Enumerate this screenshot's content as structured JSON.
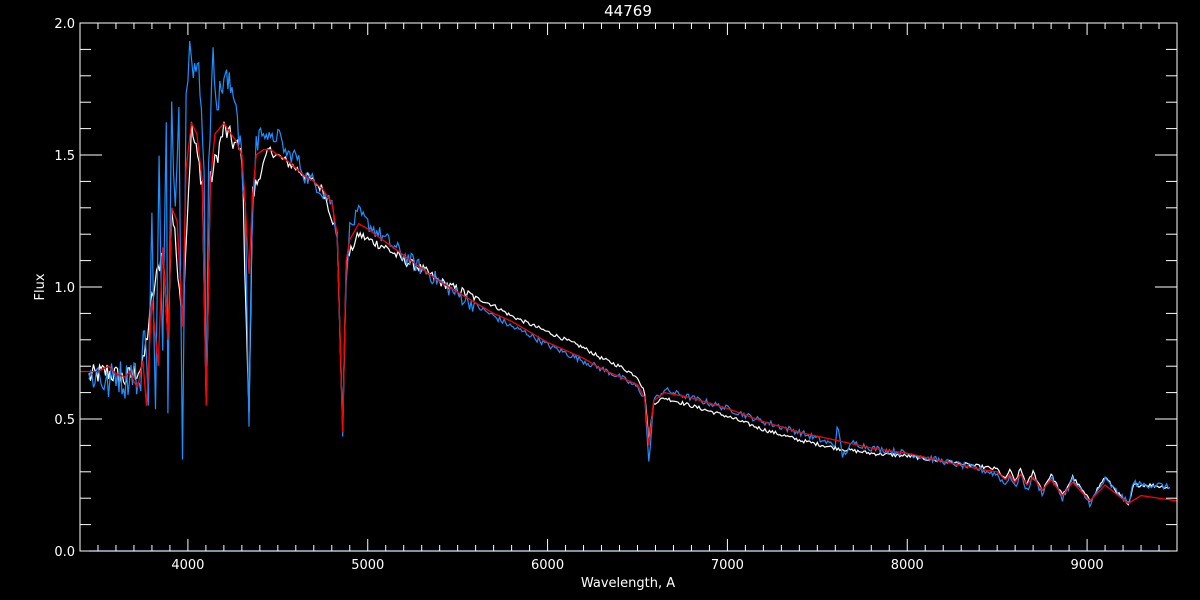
{
  "chart_data": {
    "type": "line",
    "title": "44769",
    "xlabel": "Wavelength, A",
    "ylabel": "Flux",
    "xlim": [
      3400,
      9500
    ],
    "ylim": [
      0.0,
      2.0
    ],
    "xticks": [
      "4000",
      "5000",
      "6000",
      "7000",
      "8000",
      "9000"
    ],
    "yticks": [
      "0.0",
      "0.5",
      "1.0",
      "1.5",
      "2.0"
    ],
    "grid": false,
    "background": "#000000",
    "series": [
      {
        "color": "#ffffff",
        "points": [
          [
            3450,
            0.66
          ],
          [
            3550,
            0.68
          ],
          [
            3650,
            0.65
          ],
          [
            3750,
            0.7
          ],
          [
            3800,
            0.95
          ],
          [
            3860,
            1.15
          ],
          [
            3889,
            0.8
          ],
          [
            3910,
            1.3
          ],
          [
            3970,
            0.9
          ],
          [
            4020,
            1.6
          ],
          [
            4080,
            1.4
          ],
          [
            4102,
            0.55
          ],
          [
            4125,
            1.4
          ],
          [
            4200,
            1.6
          ],
          [
            4300,
            1.5
          ],
          [
            4340,
            0.5
          ],
          [
            4360,
            1.35
          ],
          [
            4450,
            1.52
          ],
          [
            4600,
            1.45
          ],
          [
            4750,
            1.37
          ],
          [
            4830,
            1.2
          ],
          [
            4861,
            0.45
          ],
          [
            4880,
            1.1
          ],
          [
            4950,
            1.2
          ],
          [
            5000,
            1.18
          ],
          [
            5100,
            1.15
          ],
          [
            5200,
            1.1
          ],
          [
            5300,
            1.07
          ],
          [
            5400,
            1.02
          ],
          [
            5500,
            0.99
          ],
          [
            5600,
            0.96
          ],
          [
            5700,
            0.93
          ],
          [
            5800,
            0.89
          ],
          [
            5900,
            0.86
          ],
          [
            6000,
            0.83
          ],
          [
            6100,
            0.8
          ],
          [
            6200,
            0.77
          ],
          [
            6300,
            0.73
          ],
          [
            6400,
            0.7
          ],
          [
            6500,
            0.66
          ],
          [
            6540,
            0.6
          ],
          [
            6563,
            0.42
          ],
          [
            6590,
            0.56
          ],
          [
            6650,
            0.58
          ],
          [
            6800,
            0.55
          ],
          [
            7000,
            0.51
          ],
          [
            7200,
            0.46
          ],
          [
            7400,
            0.42
          ],
          [
            7600,
            0.39
          ],
          [
            7800,
            0.37
          ],
          [
            8000,
            0.36
          ],
          [
            8200,
            0.34
          ],
          [
            8400,
            0.32
          ],
          [
            8500,
            0.31
          ],
          [
            8545,
            0.27
          ],
          [
            8570,
            0.31
          ],
          [
            8598,
            0.26
          ],
          [
            8630,
            0.31
          ],
          [
            8665,
            0.25
          ],
          [
            8700,
            0.3
          ],
          [
            8750,
            0.23
          ],
          [
            8800,
            0.29
          ],
          [
            8863,
            0.21
          ],
          [
            8920,
            0.28
          ],
          [
            9015,
            0.19
          ],
          [
            9100,
            0.28
          ],
          [
            9229,
            0.17
          ],
          [
            9260,
            0.25
          ],
          [
            9350,
            0.25
          ],
          [
            9460,
            0.24
          ]
        ]
      },
      {
        "color": "#1e90ff",
        "points": [
          [
            3450,
            0.65
          ],
          [
            3500,
            0.68
          ],
          [
            3550,
            0.62
          ],
          [
            3600,
            0.68
          ],
          [
            3650,
            0.64
          ],
          [
            3700,
            0.7
          ],
          [
            3730,
            0.58
          ],
          [
            3760,
            0.9
          ],
          [
            3780,
            0.55
          ],
          [
            3800,
            1.25
          ],
          [
            3820,
            0.6
          ],
          [
            3840,
            1.45
          ],
          [
            3860,
            0.75
          ],
          [
            3880,
            1.6
          ],
          [
            3889,
            0.5
          ],
          [
            3910,
            1.7
          ],
          [
            3930,
            1.3
          ],
          [
            3950,
            1.75
          ],
          [
            3970,
            0.35
          ],
          [
            3990,
            1.7
          ],
          [
            4010,
            2.0
          ],
          [
            4030,
            1.85
          ],
          [
            4060,
            1.8
          ],
          [
            4090,
            1.5
          ],
          [
            4102,
            0.53
          ],
          [
            4115,
            1.5
          ],
          [
            4140,
            1.85
          ],
          [
            4170,
            1.7
          ],
          [
            4200,
            1.8
          ],
          [
            4230,
            1.75
          ],
          [
            4260,
            1.75
          ],
          [
            4290,
            1.55
          ],
          [
            4320,
            1.25
          ],
          [
            4340,
            0.5
          ],
          [
            4355,
            1.2
          ],
          [
            4380,
            1.55
          ],
          [
            4420,
            1.6
          ],
          [
            4460,
            1.55
          ],
          [
            4500,
            1.58
          ],
          [
            4550,
            1.5
          ],
          [
            4600,
            1.5
          ],
          [
            4650,
            1.42
          ],
          [
            4700,
            1.4
          ],
          [
            4750,
            1.36
          ],
          [
            4800,
            1.32
          ],
          [
            4830,
            1.2
          ],
          [
            4861,
            0.45
          ],
          [
            4880,
            1.05
          ],
          [
            4900,
            1.22
          ],
          [
            4950,
            1.28
          ],
          [
            5000,
            1.24
          ],
          [
            5100,
            1.18
          ],
          [
            5200,
            1.12
          ],
          [
            5300,
            1.07
          ],
          [
            5400,
            1.02
          ],
          [
            5500,
            0.97
          ],
          [
            5600,
            0.93
          ],
          [
            5700,
            0.89
          ],
          [
            5800,
            0.85
          ],
          [
            5900,
            0.82
          ],
          [
            6000,
            0.78
          ],
          [
            6100,
            0.75
          ],
          [
            6200,
            0.72
          ],
          [
            6300,
            0.69
          ],
          [
            6400,
            0.66
          ],
          [
            6500,
            0.62
          ],
          [
            6540,
            0.58
          ],
          [
            6563,
            0.33
          ],
          [
            6590,
            0.57
          ],
          [
            6650,
            0.61
          ],
          [
            6800,
            0.58
          ],
          [
            7000,
            0.54
          ],
          [
            7200,
            0.49
          ],
          [
            7400,
            0.45
          ],
          [
            7600,
            0.4
          ],
          [
            7610,
            0.48
          ],
          [
            7640,
            0.36
          ],
          [
            7700,
            0.41
          ],
          [
            7800,
            0.39
          ],
          [
            8000,
            0.37
          ],
          [
            8200,
            0.34
          ],
          [
            8400,
            0.31
          ],
          [
            8500,
            0.29
          ],
          [
            8545,
            0.25
          ],
          [
            8570,
            0.29
          ],
          [
            8598,
            0.24
          ],
          [
            8630,
            0.29
          ],
          [
            8665,
            0.23
          ],
          [
            8700,
            0.28
          ],
          [
            8750,
            0.22
          ],
          [
            8800,
            0.28
          ],
          [
            8863,
            0.2
          ],
          [
            8920,
            0.27
          ],
          [
            9015,
            0.18
          ],
          [
            9100,
            0.27
          ],
          [
            9229,
            0.18
          ],
          [
            9260,
            0.26
          ],
          [
            9300,
            0.25
          ],
          [
            9400,
            0.25
          ],
          [
            9460,
            0.24
          ]
        ]
      },
      {
        "color": "#1e90ff",
        "points": [
          [
            3450,
            0.0
          ],
          [
            9460,
            0.0
          ]
        ]
      },
      {
        "color": "#ff0000",
        "points": [
          [
            3400,
            0.68
          ],
          [
            3500,
            0.68
          ],
          [
            3560,
            0.7
          ],
          [
            3600,
            0.67
          ],
          [
            3650,
            0.66
          ],
          [
            3680,
            0.68
          ],
          [
            3700,
            0.64
          ],
          [
            3720,
            0.62
          ],
          [
            3750,
            0.72
          ],
          [
            3770,
            0.55
          ],
          [
            3800,
            0.95
          ],
          [
            3835,
            0.7
          ],
          [
            3860,
            1.15
          ],
          [
            3889,
            0.8
          ],
          [
            3910,
            1.3
          ],
          [
            3940,
            1.25
          ],
          [
            3970,
            0.85
          ],
          [
            3990,
            1.45
          ],
          [
            4020,
            1.62
          ],
          [
            4050,
            1.58
          ],
          [
            4080,
            1.4
          ],
          [
            4102,
            0.55
          ],
          [
            4125,
            1.4
          ],
          [
            4150,
            1.58
          ],
          [
            4200,
            1.62
          ],
          [
            4240,
            1.58
          ],
          [
            4270,
            1.55
          ],
          [
            4300,
            1.5
          ],
          [
            4320,
            1.3
          ],
          [
            4340,
            1.05
          ],
          [
            4360,
            1.35
          ],
          [
            4380,
            1.5
          ],
          [
            4420,
            1.52
          ],
          [
            4460,
            1.52
          ],
          [
            4500,
            1.5
          ],
          [
            4550,
            1.48
          ],
          [
            4600,
            1.45
          ],
          [
            4650,
            1.42
          ],
          [
            4700,
            1.4
          ],
          [
            4750,
            1.37
          ],
          [
            4800,
            1.32
          ],
          [
            4830,
            1.2
          ],
          [
            4861,
            0.45
          ],
          [
            4880,
            1.1
          ],
          [
            4900,
            1.18
          ],
          [
            4950,
            1.24
          ],
          [
            5000,
            1.22
          ],
          [
            5100,
            1.17
          ],
          [
            5200,
            1.12
          ],
          [
            5300,
            1.07
          ],
          [
            5400,
            1.02
          ],
          [
            5500,
            0.98
          ],
          [
            5600,
            0.94
          ],
          [
            5700,
            0.9
          ],
          [
            5800,
            0.87
          ],
          [
            5900,
            0.83
          ],
          [
            6000,
            0.79
          ],
          [
            6100,
            0.76
          ],
          [
            6200,
            0.73
          ],
          [
            6300,
            0.69
          ],
          [
            6400,
            0.66
          ],
          [
            6500,
            0.63
          ],
          [
            6540,
            0.58
          ],
          [
            6563,
            0.4
          ],
          [
            6590,
            0.57
          ],
          [
            6650,
            0.6
          ],
          [
            6800,
            0.58
          ],
          [
            7000,
            0.54
          ],
          [
            7200,
            0.49
          ],
          [
            7400,
            0.45
          ],
          [
            7600,
            0.42
          ],
          [
            7800,
            0.39
          ],
          [
            8000,
            0.37
          ],
          [
            8200,
            0.34
          ],
          [
            8400,
            0.31
          ],
          [
            8500,
            0.3
          ],
          [
            8545,
            0.27
          ],
          [
            8570,
            0.29
          ],
          [
            8598,
            0.26
          ],
          [
            8630,
            0.29
          ],
          [
            8665,
            0.25
          ],
          [
            8700,
            0.28
          ],
          [
            8750,
            0.23
          ],
          [
            8800,
            0.27
          ],
          [
            8863,
            0.21
          ],
          [
            8920,
            0.26
          ],
          [
            9015,
            0.19
          ],
          [
            9100,
            0.25
          ],
          [
            9229,
            0.18
          ],
          [
            9300,
            0.21
          ],
          [
            9400,
            0.2
          ],
          [
            9500,
            0.19
          ]
        ]
      }
    ]
  }
}
